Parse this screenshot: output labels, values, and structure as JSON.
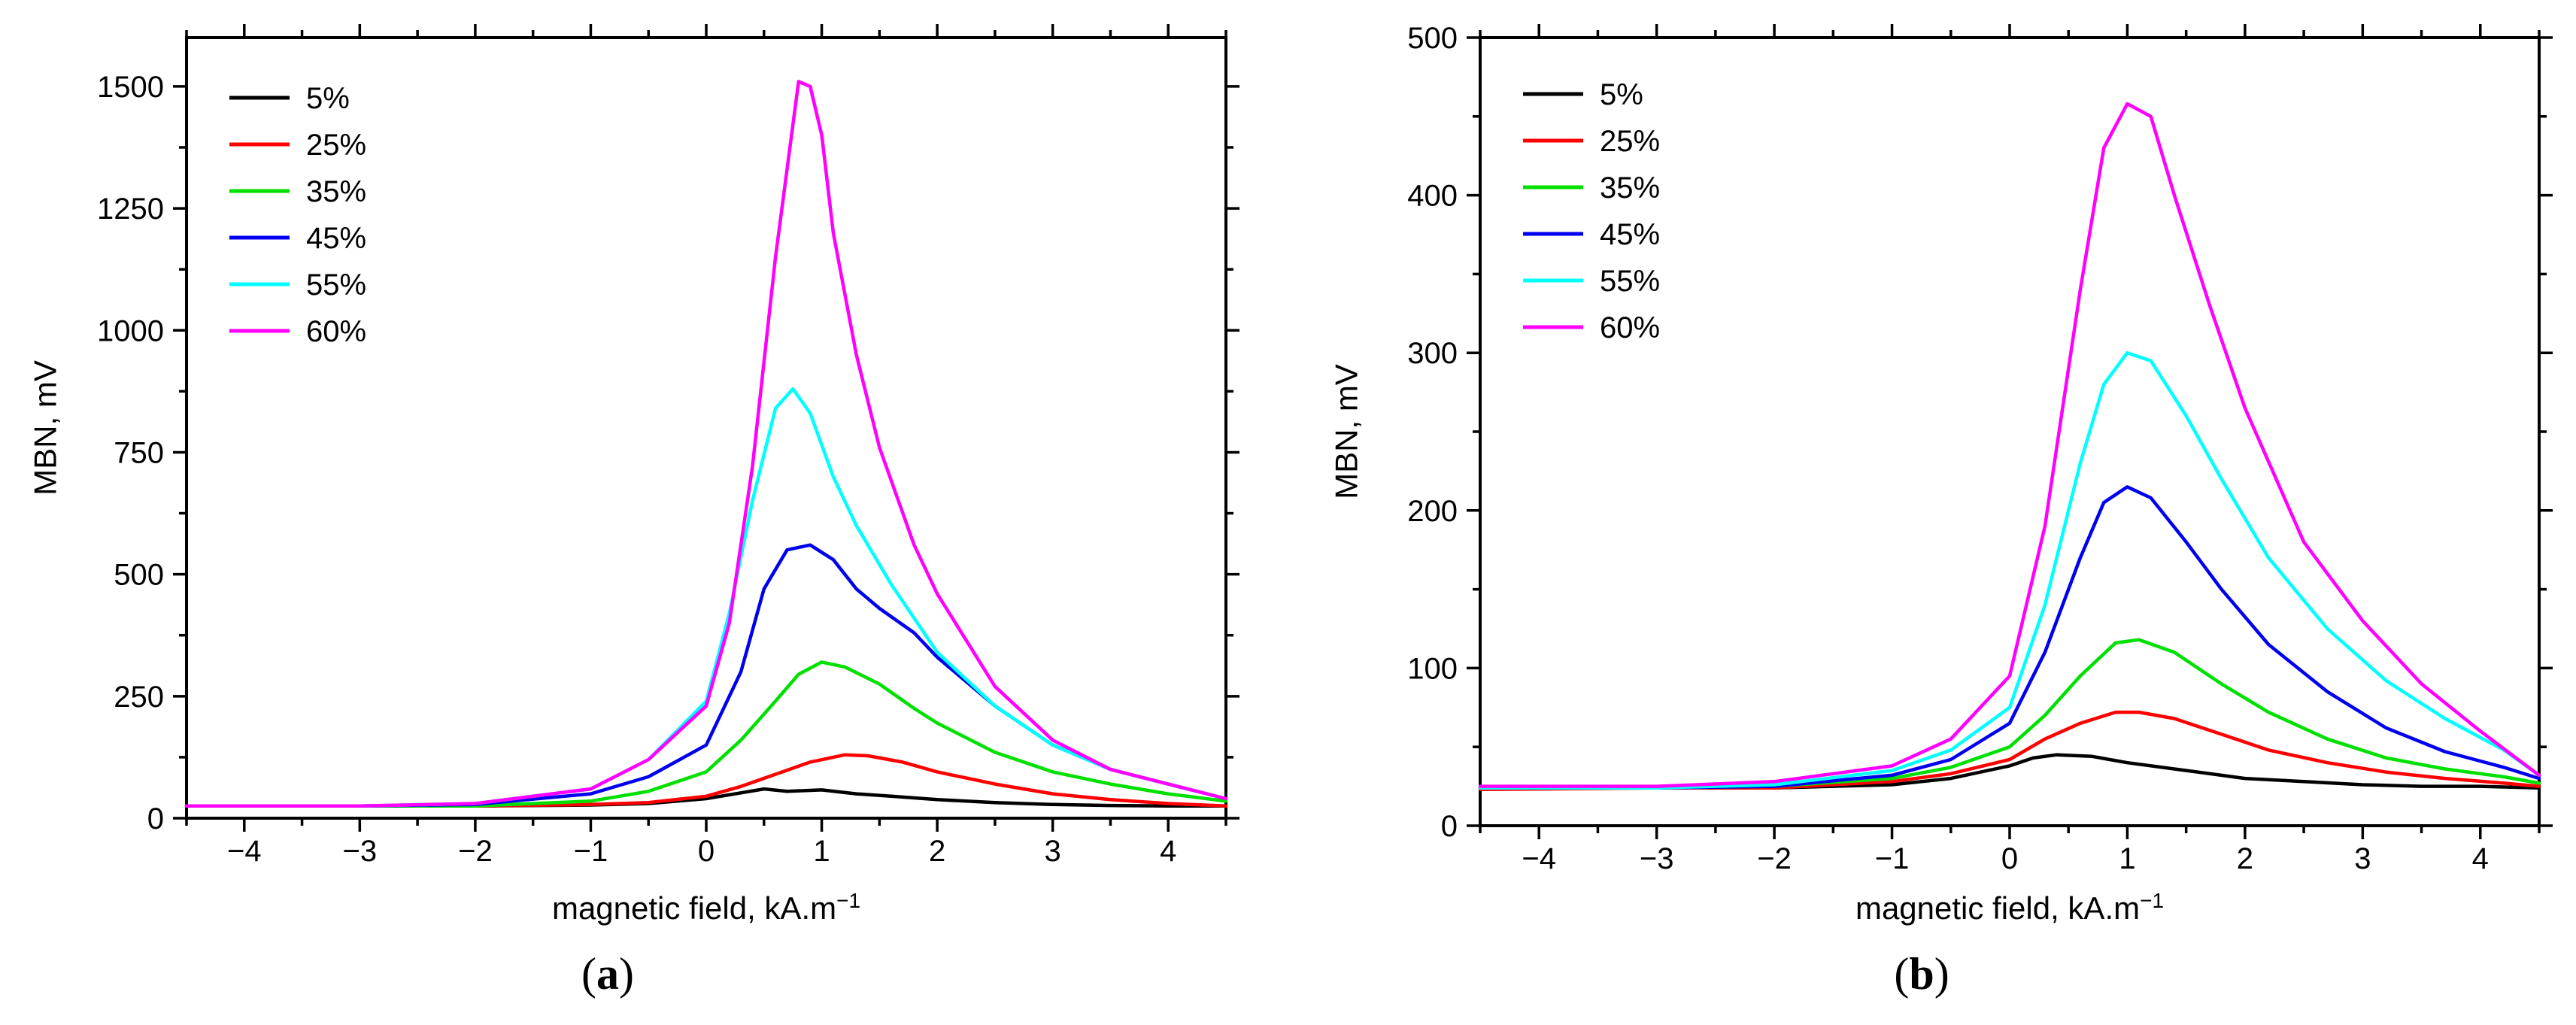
{
  "chart_data": [
    {
      "type": "line",
      "caption_open": "(",
      "caption_letter": "a",
      "caption_close": ")",
      "xlabel": "magnetic field, kA.m",
      "xlabel_exp": "−1",
      "ylabel": "MBN, mV",
      "xlim": [
        -4.5,
        4.5
      ],
      "ylim": [
        0,
        1600
      ],
      "xticks": [
        -4,
        -3,
        -2,
        -1,
        0,
        1,
        2,
        3,
        4
      ],
      "xtick_labels": [
        "−4",
        "−3",
        "−2",
        "−1",
        "0",
        "1",
        "2",
        "3",
        "4"
      ],
      "yticks": [
        0,
        250,
        500,
        750,
        1000,
        1250,
        1500
      ],
      "ytick_labels": [
        "0",
        "250",
        "500",
        "750",
        "1000",
        "1250",
        "1500"
      ],
      "legend_position": "top-left",
      "series": [
        {
          "name": "5%",
          "color": "#000000",
          "x": [
            -4.5,
            -3,
            -2,
            -1,
            -0.5,
            0,
            0.3,
            0.5,
            0.7,
            1,
            1.3,
            1.6,
            2,
            2.5,
            3,
            3.5,
            4,
            4.5
          ],
          "y": [
            25,
            25,
            25,
            27,
            30,
            40,
            52,
            60,
            55,
            58,
            50,
            45,
            38,
            32,
            28,
            26,
            25,
            25
          ]
        },
        {
          "name": "25%",
          "color": "#ff0000",
          "x": [
            -4.5,
            -3,
            -2,
            -1,
            -0.5,
            0,
            0.3,
            0.6,
            0.9,
            1.2,
            1.4,
            1.7,
            2,
            2.5,
            3,
            3.5,
            4,
            4.5
          ],
          "y": [
            25,
            25,
            25,
            28,
            32,
            45,
            65,
            90,
            115,
            130,
            128,
            115,
            95,
            70,
            50,
            38,
            30,
            25
          ]
        },
        {
          "name": "35%",
          "color": "#00e000",
          "x": [
            -4.5,
            -3,
            -2,
            -1,
            -0.5,
            0,
            0.3,
            0.6,
            0.8,
            1,
            1.2,
            1.5,
            1.8,
            2,
            2.5,
            3,
            3.5,
            4,
            4.5
          ],
          "y": [
            25,
            25,
            25,
            35,
            55,
            95,
            160,
            240,
            295,
            320,
            310,
            275,
            225,
            195,
            135,
            95,
            70,
            50,
            35
          ]
        },
        {
          "name": "45%",
          "color": "#0000ee",
          "x": [
            -4.5,
            -3,
            -2,
            -1,
            -0.5,
            0,
            0.3,
            0.5,
            0.7,
            0.9,
            1.1,
            1.3,
            1.5,
            1.8,
            2,
            2.5,
            3,
            3.5,
            4,
            4.5
          ],
          "y": [
            25,
            25,
            28,
            50,
            85,
            150,
            300,
            470,
            550,
            560,
            530,
            470,
            430,
            380,
            330,
            230,
            150,
            100,
            70,
            40
          ]
        },
        {
          "name": "55%",
          "color": "#00ffff",
          "x": [
            -4.5,
            -3,
            -2,
            -1,
            -0.5,
            0,
            0.2,
            0.4,
            0.6,
            0.75,
            0.9,
            1.1,
            1.3,
            1.6,
            2,
            2.5,
            3,
            3.5,
            4,
            4.5
          ],
          "y": [
            25,
            25,
            30,
            60,
            120,
            240,
            420,
            650,
            840,
            880,
            830,
            700,
            600,
            480,
            340,
            230,
            150,
            100,
            70,
            40
          ]
        },
        {
          "name": "60%",
          "color": "#ff00ff",
          "x": [
            -4.5,
            -3,
            -2,
            -1,
            -0.5,
            0,
            0.2,
            0.4,
            0.6,
            0.8,
            0.9,
            1,
            1.1,
            1.3,
            1.5,
            1.8,
            2,
            2.5,
            3,
            3.5,
            4,
            4.5
          ],
          "y": [
            25,
            25,
            30,
            60,
            120,
            230,
            400,
            720,
            1150,
            1510,
            1500,
            1400,
            1200,
            950,
            760,
            560,
            460,
            270,
            160,
            100,
            70,
            40
          ]
        }
      ]
    },
    {
      "type": "line",
      "caption_open": "(",
      "caption_letter": "b",
      "caption_close": ")",
      "xlabel": "magnetic field, kA.m",
      "xlabel_exp": "−1",
      "ylabel": "MBN, mV",
      "xlim": [
        -4.5,
        4.5
      ],
      "ylim": [
        0,
        500
      ],
      "xticks": [
        -4,
        -3,
        -2,
        -1,
        0,
        1,
        2,
        3,
        4
      ],
      "xtick_labels": [
        "−4",
        "−3",
        "−2",
        "−1",
        "0",
        "1",
        "2",
        "3",
        "4"
      ],
      "yticks": [
        0,
        100,
        200,
        300,
        400,
        500
      ],
      "ytick_labels": [
        "0",
        "100",
        "200",
        "300",
        "400",
        "500"
      ],
      "legend_position": "top-left",
      "series": [
        {
          "name": "5%",
          "color": "#000000",
          "x": [
            -4.5,
            -3,
            -2,
            -1,
            -0.5,
            0,
            0.2,
            0.4,
            0.7,
            1,
            1.5,
            2,
            2.5,
            3,
            3.5,
            4,
            4.5
          ],
          "y": [
            24,
            24,
            24,
            26,
            30,
            38,
            43,
            45,
            44,
            40,
            35,
            30,
            28,
            26,
            25,
            25,
            24
          ]
        },
        {
          "name": "25%",
          "color": "#ff0000",
          "x": [
            -4.5,
            -3,
            -2,
            -1,
            -0.5,
            0,
            0.3,
            0.6,
            0.9,
            1.1,
            1.4,
            1.8,
            2.2,
            2.7,
            3.2,
            3.7,
            4.2,
            4.5
          ],
          "y": [
            23,
            24,
            24,
            28,
            33,
            42,
            55,
            65,
            72,
            72,
            68,
            58,
            48,
            40,
            34,
            30,
            27,
            25
          ]
        },
        {
          "name": "35%",
          "color": "#00e000",
          "x": [
            -4.5,
            -3,
            -2,
            -1,
            -0.5,
            0,
            0.3,
            0.6,
            0.9,
            1.1,
            1.4,
            1.8,
            2.2,
            2.7,
            3.2,
            3.7,
            4.2,
            4.5
          ],
          "y": [
            24,
            24,
            25,
            30,
            37,
            50,
            70,
            95,
            116,
            118,
            110,
            90,
            72,
            55,
            43,
            36,
            31,
            27
          ]
        },
        {
          "name": "45%",
          "color": "#0000ee",
          "x": [
            -4.5,
            -3,
            -2,
            -1,
            -0.5,
            0,
            0.3,
            0.6,
            0.8,
            1,
            1.2,
            1.5,
            1.8,
            2.2,
            2.7,
            3.2,
            3.7,
            4.2,
            4.5
          ],
          "y": [
            24,
            24,
            25,
            32,
            42,
            65,
            110,
            170,
            205,
            215,
            208,
            180,
            150,
            115,
            85,
            62,
            47,
            37,
            30
          ]
        },
        {
          "name": "55%",
          "color": "#00ffff",
          "x": [
            -4.5,
            -3,
            -2,
            -1,
            -0.5,
            0,
            0.3,
            0.6,
            0.8,
            1,
            1.2,
            1.5,
            1.8,
            2.2,
            2.7,
            3.2,
            3.7,
            4.2,
            4.5
          ],
          "y": [
            24,
            24,
            26,
            35,
            48,
            75,
            140,
            230,
            280,
            300,
            295,
            260,
            220,
            170,
            125,
            92,
            68,
            48,
            32
          ]
        },
        {
          "name": "60%",
          "color": "#ff00ff",
          "x": [
            -4.5,
            -3,
            -2,
            -1,
            -0.5,
            0,
            0.3,
            0.6,
            0.8,
            1,
            1.2,
            1.4,
            1.7,
            2,
            2.5,
            3,
            3.5,
            4,
            4.5
          ],
          "y": [
            25,
            25,
            28,
            38,
            55,
            95,
            190,
            340,
            430,
            458,
            450,
            400,
            330,
            265,
            180,
            130,
            90,
            60,
            32
          ]
        }
      ]
    }
  ]
}
